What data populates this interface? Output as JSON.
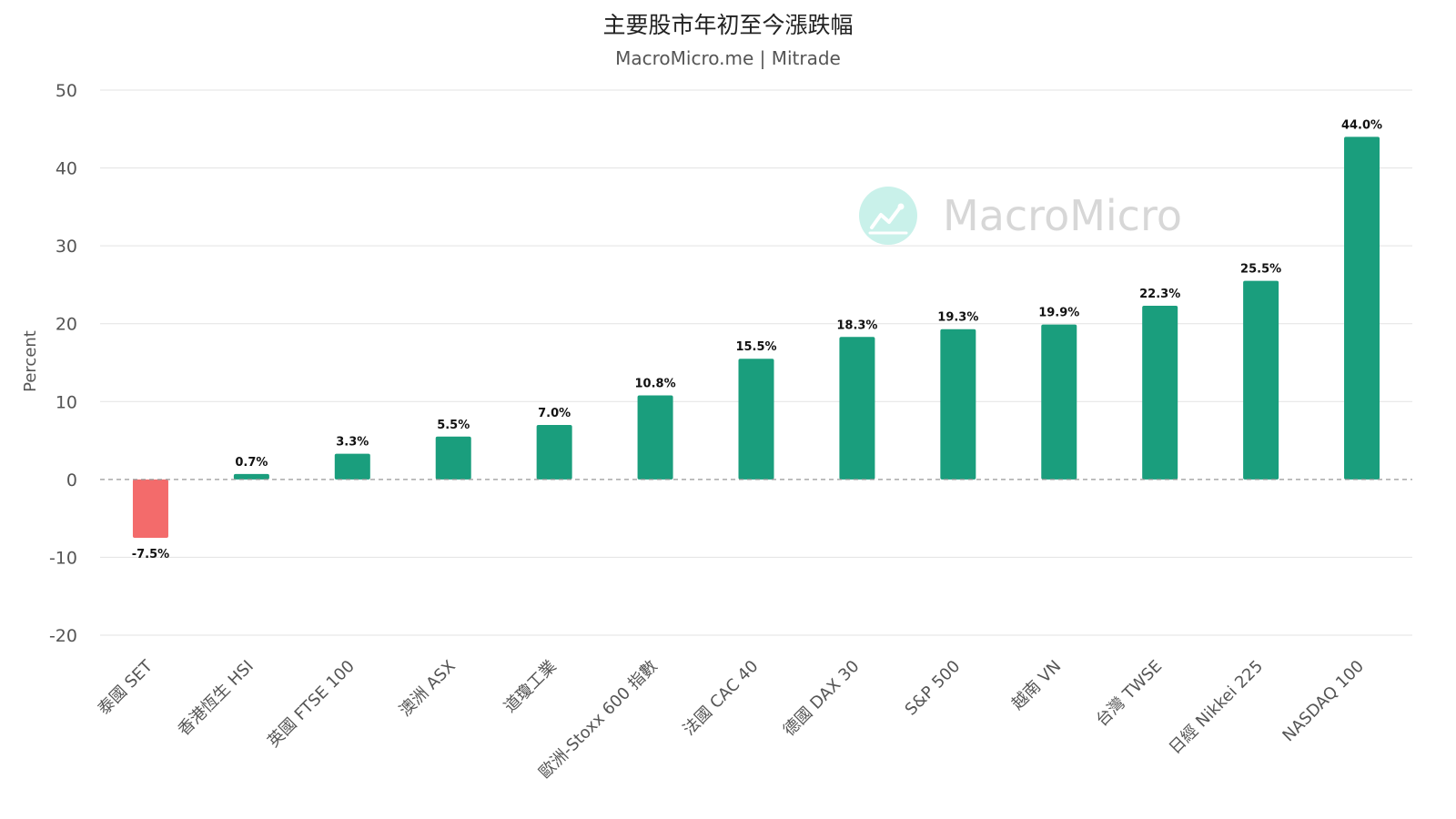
{
  "header": {
    "title": "主要股市年初至今漲跌幅",
    "subtitle": "MacroMicro.me | Mitrade"
  },
  "watermark": {
    "text": "MacroMicro",
    "icon": "line-chart-icon"
  },
  "colors": {
    "positive": "#1a9e7d",
    "negative": "#f36b6b",
    "grid": "#e3e3e3",
    "zero_line": "#999999",
    "axis_text": "#555555",
    "watermark_circle": "#c9f1ea"
  },
  "chart_data": {
    "type": "bar",
    "categories": [
      "泰國 SET",
      "香港恆生 HSI",
      "英國 FTSE 100",
      "澳洲 ASX",
      "道瓊工業",
      "歐洲-Stoxx 600 指數",
      "法國 CAC 40",
      "德國 DAX 30",
      "S&P 500",
      "越南 VN",
      "台灣 TWSE",
      "日經 Nikkei 225",
      "NASDAQ 100"
    ],
    "values": [
      -7.5,
      0.7,
      3.3,
      5.5,
      7.0,
      10.8,
      15.5,
      18.3,
      19.3,
      19.9,
      22.3,
      25.5,
      44.0
    ],
    "data_labels": [
      "-7.5%",
      "0.7%",
      "3.3%",
      "5.5%",
      "7.0%",
      "10.8%",
      "15.5%",
      "18.3%",
      "19.3%",
      "19.9%",
      "22.3%",
      "25.5%",
      "44.0%"
    ],
    "ylabel": "Percent",
    "xlabel": "",
    "ylim": [
      -20,
      50
    ],
    "yticks": [
      50,
      40,
      30,
      20,
      10,
      0,
      -10,
      -20
    ],
    "ytick_labels": [
      "50",
      "40",
      "30",
      "20",
      "10",
      "0",
      "-10",
      "-20"
    ],
    "grid": true,
    "legend": "none"
  }
}
